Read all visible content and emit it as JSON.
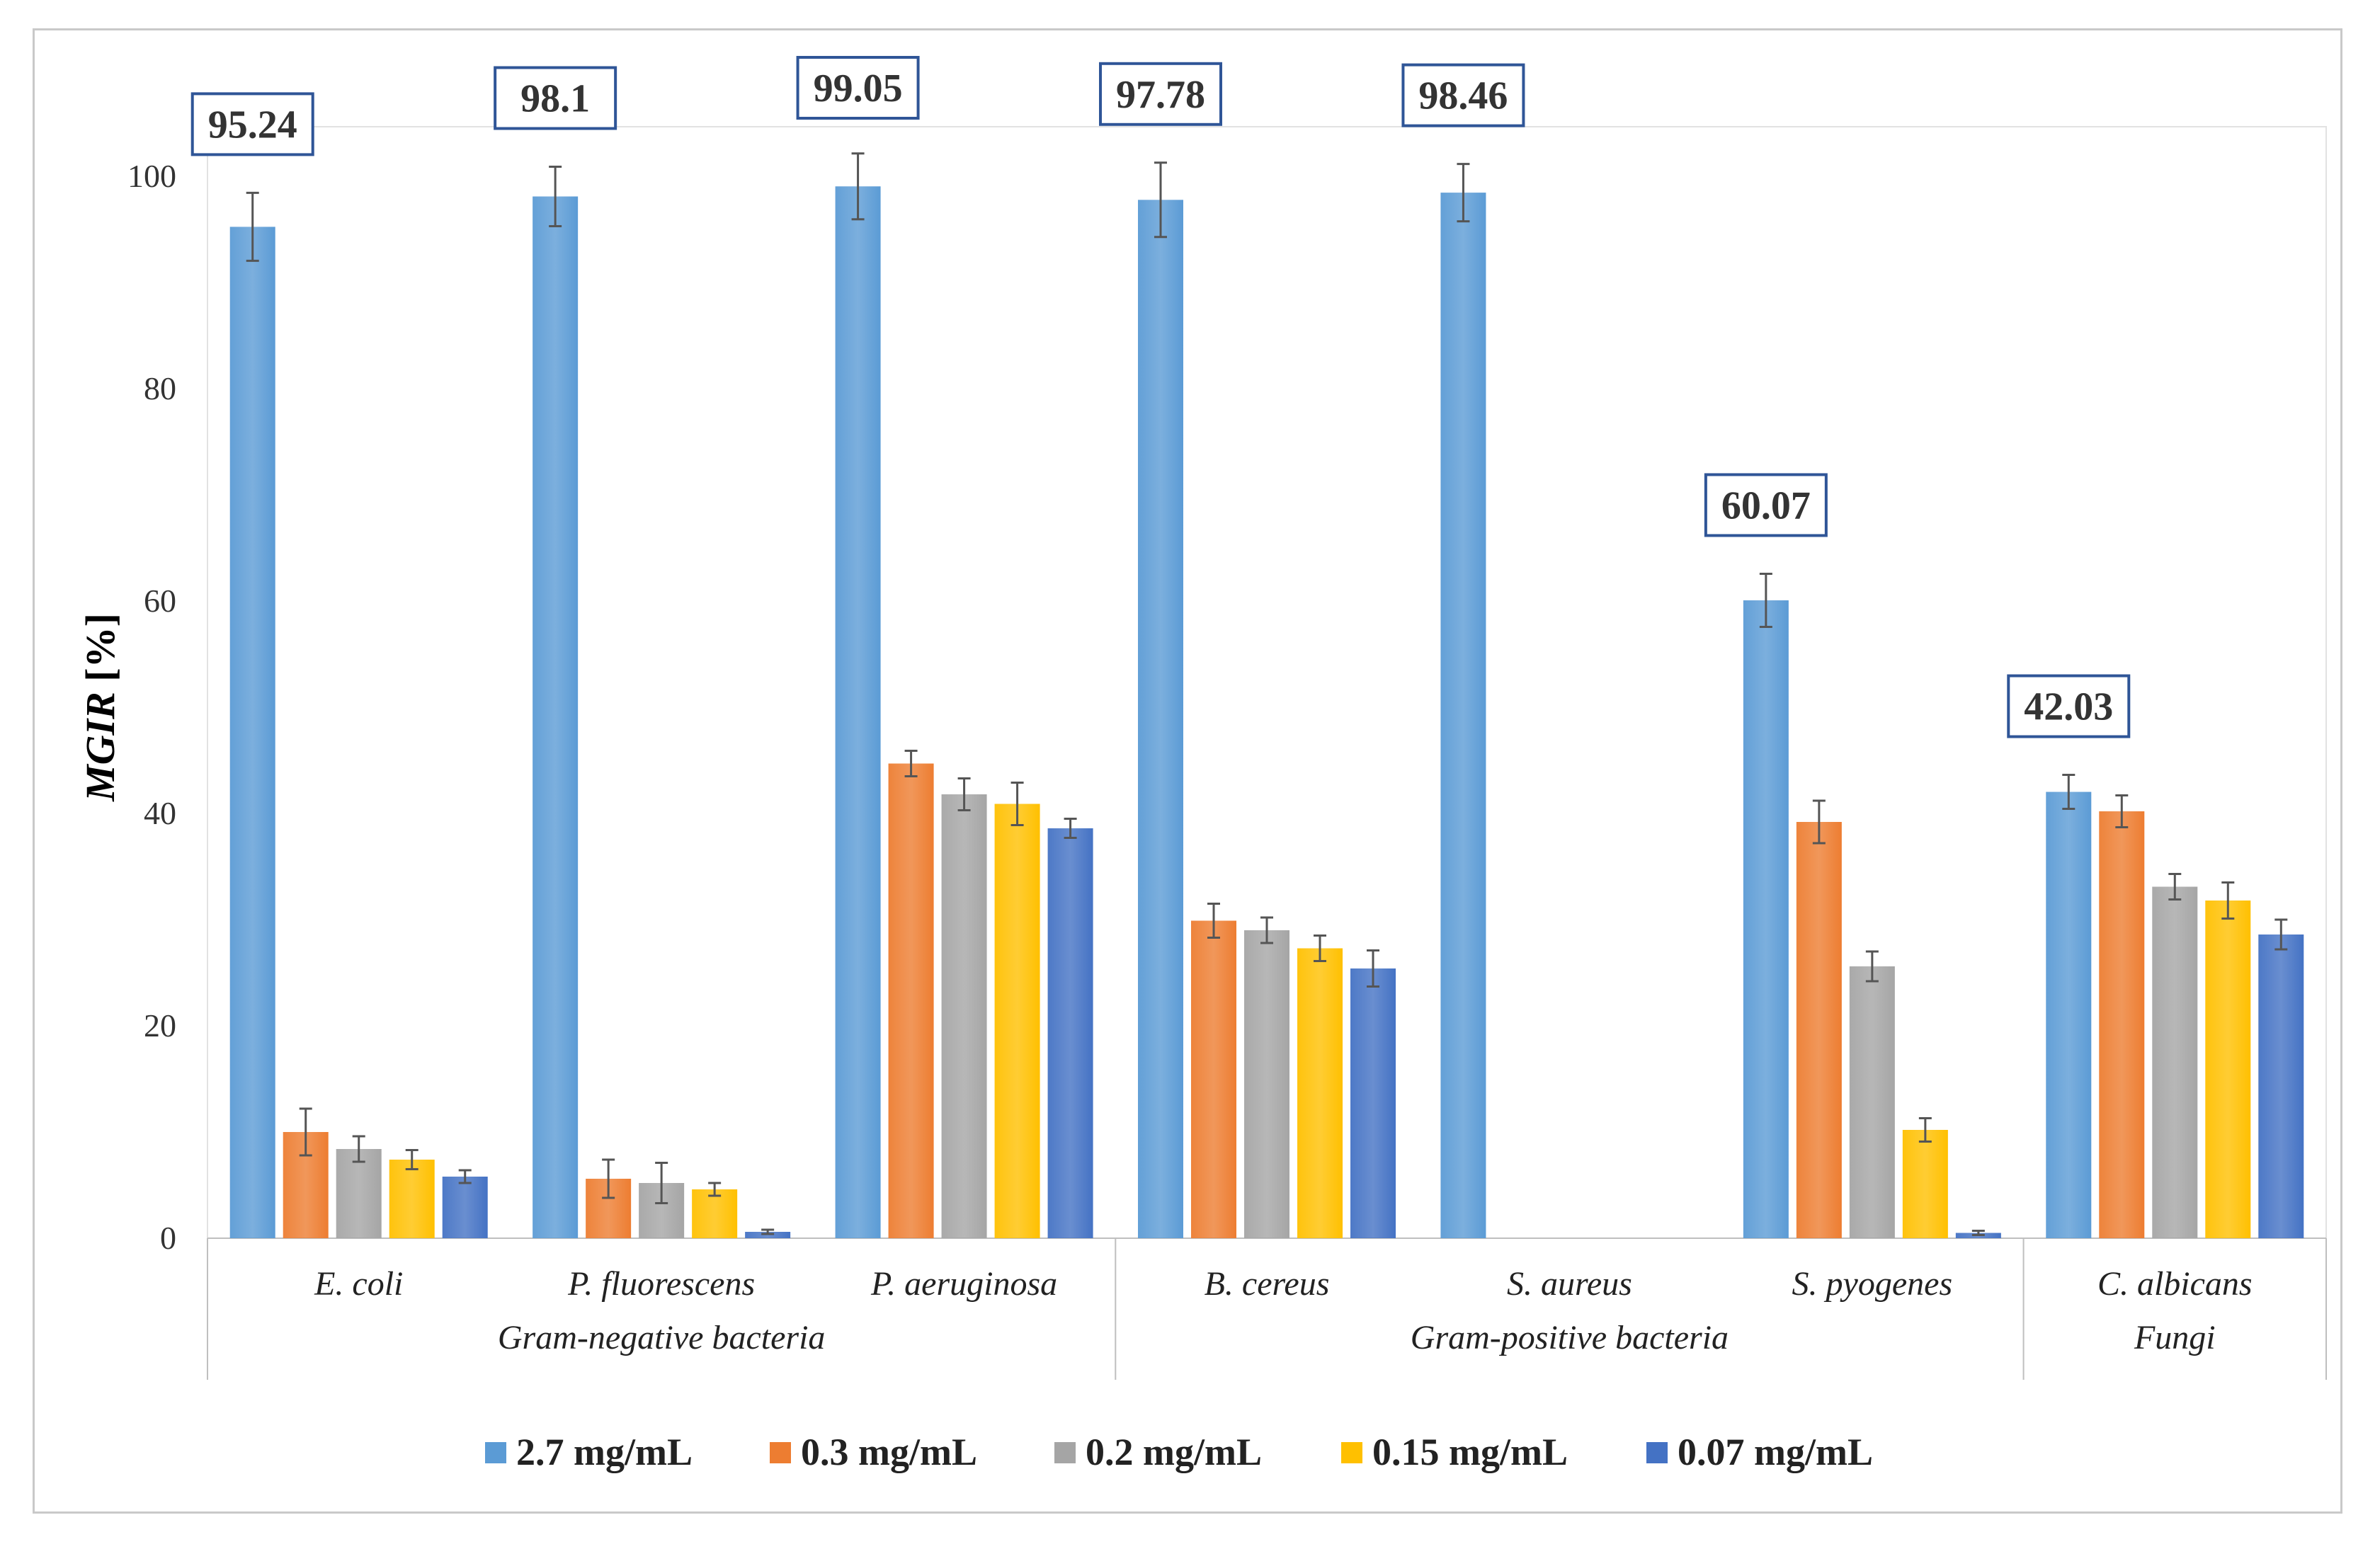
{
  "chart_data": {
    "type": "bar",
    "ylabel": "MGIR [%]",
    "ylim": [
      0,
      100
    ],
    "yticks": [
      0,
      20,
      40,
      60,
      80,
      100
    ],
    "categories": [
      "E. coli",
      "P. fluorescens",
      "P. aeruginosa",
      "B. cereus",
      "S. aureus",
      "S. pyogenes",
      "C. albicans"
    ],
    "groups": [
      {
        "label": "Gram-negative bacteria",
        "from": 0,
        "to": 2
      },
      {
        "label": "Gram-positive bacteria",
        "from": 3,
        "to": 5
      },
      {
        "label": "Fungi",
        "from": 6,
        "to": 6
      }
    ],
    "series": [
      {
        "name": "2.7 mg/mL",
        "color": "#5b9bd5",
        "values": [
          95.24,
          98.1,
          99.05,
          97.78,
          98.46,
          60.07,
          42.03
        ],
        "errors": [
          3.2,
          2.8,
          3.1,
          3.5,
          2.7,
          2.5,
          1.6
        ]
      },
      {
        "name": "0.3 mg/mL",
        "color": "#ed7d31",
        "values": [
          10.0,
          5.6,
          44.7,
          29.9,
          0,
          39.2,
          40.2
        ],
        "errors": [
          2.2,
          1.8,
          1.2,
          1.6,
          0,
          2.0,
          1.5
        ]
      },
      {
        "name": "0.2 mg/mL",
        "color": "#a5a5a5",
        "values": [
          8.4,
          5.2,
          41.8,
          29.0,
          0,
          25.6,
          33.1
        ],
        "errors": [
          1.2,
          1.9,
          1.5,
          1.2,
          0,
          1.4,
          1.2
        ]
      },
      {
        "name": "0.15 mg/mL",
        "color": "#ffc000",
        "values": [
          7.4,
          4.6,
          40.9,
          27.3,
          0,
          10.2,
          31.8
        ],
        "errors": [
          0.9,
          0.6,
          2.0,
          1.2,
          0,
          1.1,
          1.7
        ]
      },
      {
        "name": "0.07 mg/mL",
        "color": "#4472c4",
        "values": [
          5.8,
          0.6,
          38.6,
          25.4,
          0,
          0.5,
          28.6
        ],
        "errors": [
          0.6,
          0.2,
          0.9,
          1.7,
          0,
          0.2,
          1.4
        ]
      }
    ],
    "annotations": [
      "95.24",
      "98.1",
      "99.05",
      "97.78",
      "98.46",
      "60.07",
      "42.03"
    ],
    "legend_position": "bottom",
    "grid": false
  }
}
